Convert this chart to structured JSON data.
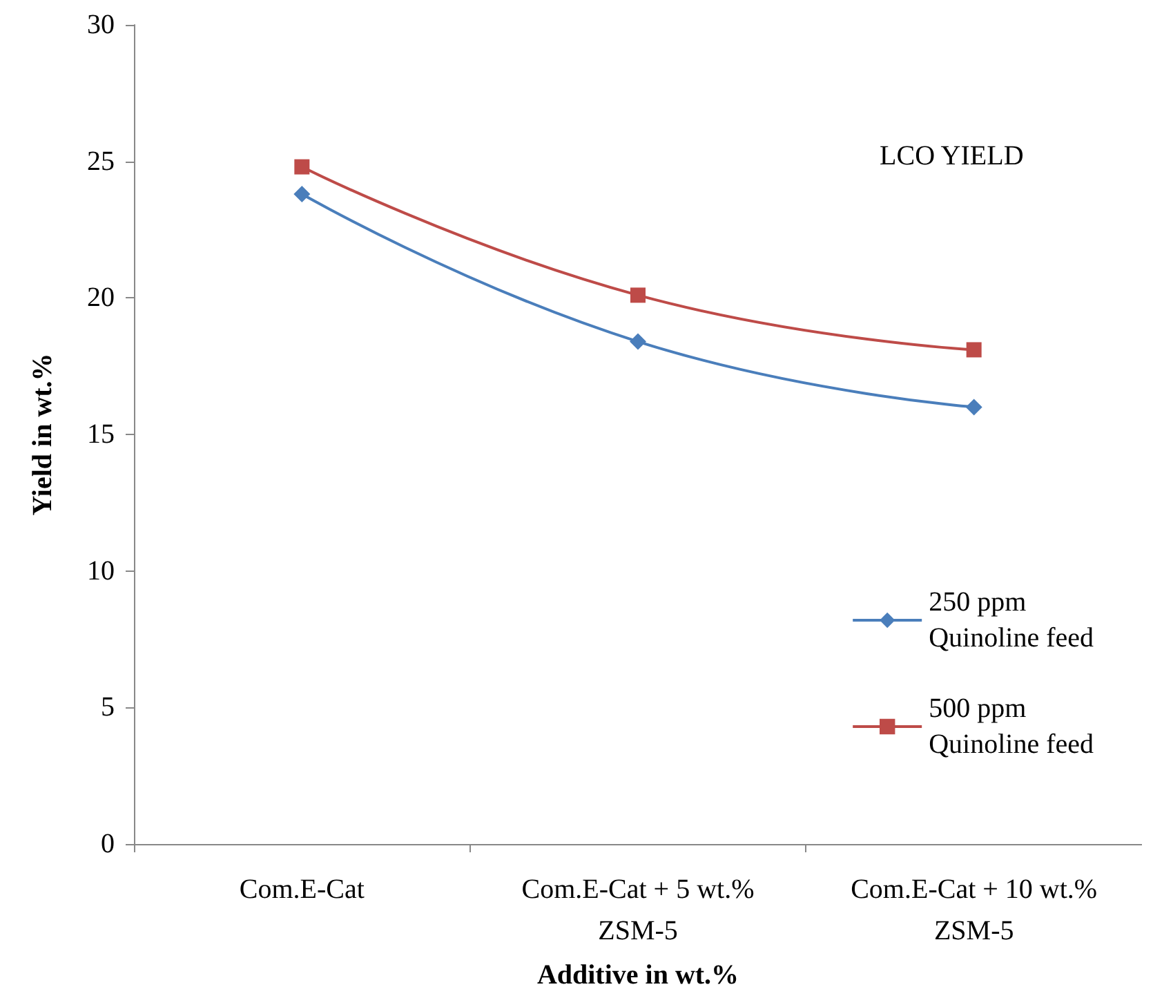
{
  "chart_data": {
    "type": "line",
    "xlabel": "Additive in wt.%",
    "ylabel": "Yield in wt.%",
    "annotations": [
      "LCO YIELD"
    ],
    "categories": [
      "Com.E-Cat",
      "Com.E-Cat + 5 wt.%\nZSM-5",
      "Com.E-Cat + 10 wt.%\nZSM-5"
    ],
    "series": [
      {
        "name": "250 ppm\nQuinoline feed",
        "color": "#4a7ebb",
        "marker": "diamond",
        "values": [
          23.8,
          18.4,
          16.0
        ]
      },
      {
        "name": "500 ppm\nQuinoline feed",
        "color": "#be4b48",
        "marker": "square",
        "values": [
          24.8,
          20.1,
          18.1
        ]
      }
    ],
    "ylim": [
      0,
      30
    ],
    "yticks": [
      0,
      5,
      10,
      15,
      20,
      25,
      30
    ],
    "grid": false,
    "legend": "right"
  }
}
